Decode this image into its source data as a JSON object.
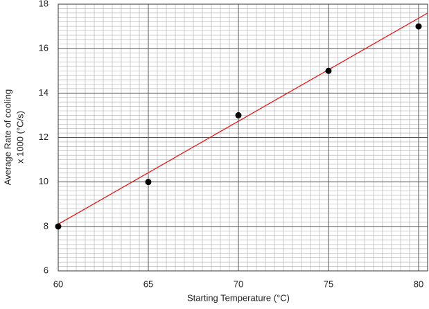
{
  "chart_data": {
    "type": "scatter",
    "x_label": "Starting Temperature (°C)",
    "y_label": [
      "Average Rate of cooling",
      "x 1000 (°C/s)"
    ],
    "series": [
      {
        "name": null,
        "color": "#000000",
        "x": [
          60,
          65,
          70,
          75,
          80
        ],
        "values": [
          8,
          10,
          13,
          15,
          17
        ]
      }
    ],
    "trendline": {
      "color": "#e31b1b",
      "x": [
        60,
        80.5
      ],
      "values": [
        8.1,
        17.6
      ]
    },
    "xlim": [
      60,
      80.5
    ],
    "xticks": [
      60,
      65,
      70,
      75,
      80
    ],
    "ylim": [
      6,
      18
    ],
    "yticks": [
      6,
      8,
      10,
      12,
      14,
      16,
      18
    ],
    "grid": true,
    "minor_grid": {
      "x": 0.5,
      "y": 0.2
    }
  }
}
